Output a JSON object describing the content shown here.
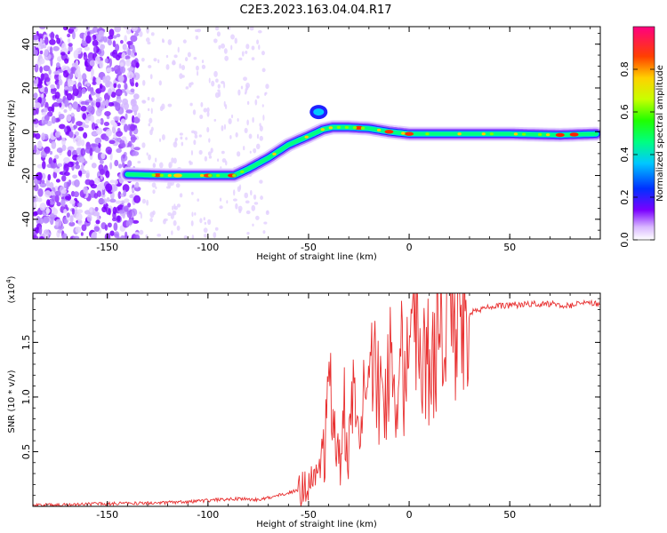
{
  "title": "C2E3.2023.163.04.04.R17",
  "chart_data": [
    {
      "type": "heatmap",
      "xlabel": "Height of straight line (km)",
      "ylabel": "Frequency (Hz)",
      "xlim": [
        -187,
        95
      ],
      "ylim": [
        -49,
        48
      ],
      "xticks": [
        -150,
        -100,
        -50,
        0,
        50
      ],
      "yticks": [
        -40,
        -20,
        0,
        20,
        40
      ],
      "colorbar": {
        "label": "Normalized spectral amplitude",
        "ticks": [
          "0.0",
          "0.2",
          "0.4",
          "0.6",
          "0.8"
        ],
        "range": [
          0,
          1
        ]
      },
      "ridge": [
        {
          "x": -140,
          "y": -19.5
        },
        {
          "x": -120,
          "y": -20
        },
        {
          "x": -100,
          "y": -20
        },
        {
          "x": -87,
          "y": -20
        },
        {
          "x": -80,
          "y": -17
        },
        {
          "x": -70,
          "y": -12
        },
        {
          "x": -60,
          "y": -6
        },
        {
          "x": -50,
          "y": -2
        },
        {
          "x": -43,
          "y": 1
        },
        {
          "x": -38,
          "y": 2
        },
        {
          "x": -30,
          "y": 2
        },
        {
          "x": -20,
          "y": 1.5
        },
        {
          "x": -10,
          "y": 0
        },
        {
          "x": 0,
          "y": -1
        },
        {
          "x": 20,
          "y": -1
        },
        {
          "x": 50,
          "y": -1
        },
        {
          "x": 75,
          "y": -1.5
        },
        {
          "x": 93,
          "y": -1
        }
      ]
    },
    {
      "type": "line",
      "xlabel": "Height of straight line (km)",
      "ylabel": "SNR (10 * v/v)",
      "yscale_note": "(x10",
      "yscale_exp": "4",
      "yscale_close": ")",
      "xlim": [
        -187,
        95
      ],
      "ylim": [
        0,
        1.95
      ],
      "xticks": [
        -150,
        -100,
        -50,
        0,
        50
      ],
      "yticks": [
        0.5,
        1.0,
        1.5
      ],
      "ytick_labels": [
        "0.5",
        "1.0",
        "1.5"
      ],
      "color": "#e83030",
      "series": [
        {
          "x": [
            -187,
            -160,
            -130,
            -110,
            -95,
            -85,
            -75,
            -65,
            -55,
            -50,
            -45,
            -42,
            -40,
            -38,
            -36,
            -34,
            -32,
            -30,
            -28,
            -25,
            -22,
            -20,
            -18,
            -15,
            -12,
            -10,
            -8,
            -5,
            -2,
            0,
            3,
            6,
            8,
            10,
            12,
            15,
            18,
            20,
            25,
            30,
            35,
            40,
            50,
            60,
            70,
            80,
            90,
            95
          ],
          "y": [
            0.01,
            0.02,
            0.03,
            0.04,
            0.06,
            0.07,
            0.06,
            0.1,
            0.15,
            0.2,
            0.3,
            0.5,
            0.9,
            1.05,
            0.8,
            0.4,
            0.9,
            0.6,
            1.0,
            1.1,
            0.9,
            1.05,
            1.15,
            1.1,
            1.2,
            1.25,
            1.1,
            1.3,
            1.2,
            1.35,
            1.4,
            1.2,
            1.3,
            1.5,
            1.45,
            1.55,
            1.6,
            1.62,
            1.7,
            1.78,
            1.8,
            1.82,
            1.84,
            1.85,
            1.85,
            1.84,
            1.86,
            1.85
          ]
        }
      ]
    }
  ]
}
